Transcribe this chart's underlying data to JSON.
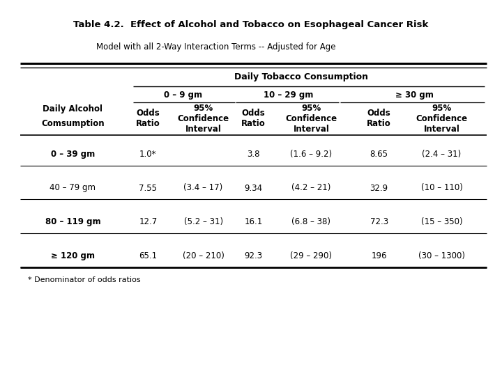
{
  "title": "Table 4.2.  Effect of Alcohol and Tobacco on Esophageal Cancer Risk",
  "subtitle": "Model with all 2-Way Interaction Terms -- Adjusted for Age",
  "col_group_header": "Daily Tobacco Consumption",
  "row_header_line1": "Daily Alcohol",
  "row_header_line2": "Comsumption",
  "col_groups": [
    "0 – 9 gm",
    "10 – 29 gm",
    "≥ 30 gm"
  ],
  "row_labels": [
    "0 – 39 gm",
    "40 – 79 gm",
    "80 – 119 gm",
    "≥ 120 gm"
  ],
  "row_bold": [
    true,
    false,
    true,
    true
  ],
  "data": [
    [
      "1.0*",
      "",
      "3.8",
      "(1.6 – 9.2)",
      "8.65",
      "(2.4 – 31)"
    ],
    [
      "7.55",
      "(3.4 – 17)",
      "9.34",
      "(4.2 – 21)",
      "32.9",
      "(10 – 110)"
    ],
    [
      "12.7",
      "(5.2 – 31)",
      "16.1",
      "(6.8 – 38)",
      "72.3",
      "(15 – 350)"
    ],
    [
      "65.1",
      "(20 – 210)",
      "92.3",
      "(29 – 290)",
      "196",
      "(30 – 1300)"
    ]
  ],
  "footnote": "* Denominator of odds ratios",
  "background_color": "#ffffff",
  "text_color": "#000000",
  "title_fs": 9.5,
  "subtitle_fs": 8.5,
  "header_fs": 8.5,
  "data_fs": 8.5,
  "footnote_fs": 8.0
}
